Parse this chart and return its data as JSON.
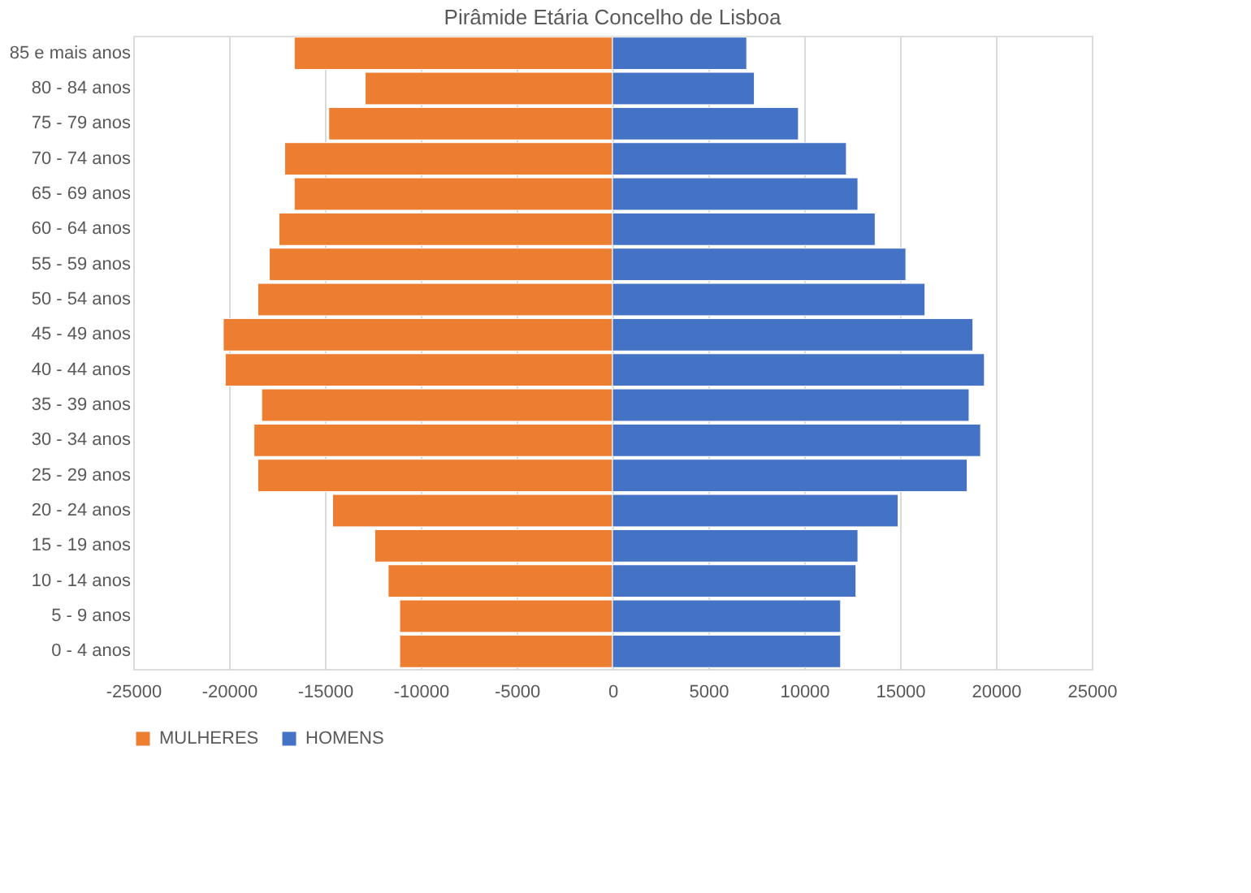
{
  "chart_data": {
    "type": "bar",
    "title": "Pirâmide Etária Concelho de Lisboa",
    "orientation": "horizontal",
    "stacked": true,
    "categories": [
      "85 e mais anos",
      "80 - 84 anos",
      "75 - 79 anos",
      "70 - 74 anos",
      "65 - 69 anos",
      "60 - 64 anos",
      "55 - 59 anos",
      "50 - 54 anos",
      "45 - 49 anos",
      "40 - 44 anos",
      "35 - 39 anos",
      "30 - 34 anos",
      "25 - 29 anos",
      "20 - 24 anos",
      "15 - 19 anos",
      "10 - 14 anos",
      "5 - 9 anos",
      "0 - 4 anos"
    ],
    "series": [
      {
        "name": "MULHERES",
        "color": "#ed7d31",
        "values": [
          -16600,
          -12900,
          -14800,
          -17100,
          -16600,
          -17400,
          -17900,
          -18500,
          -20300,
          -20200,
          -18300,
          -18700,
          -18500,
          -14600,
          -12400,
          -11700,
          -11100,
          -11100
        ]
      },
      {
        "name": "HOMENS",
        "color": "#4472c4",
        "values": [
          7000,
          7400,
          9700,
          12200,
          12800,
          13700,
          15300,
          16300,
          18800,
          19400,
          18600,
          19200,
          18500,
          14900,
          12800,
          12700,
          11900,
          11900
        ]
      }
    ],
    "xlim": [
      -25000,
      25000
    ],
    "xticks": [
      -25000,
      -20000,
      -15000,
      -10000,
      -5000,
      0,
      5000,
      10000,
      15000,
      20000,
      25000
    ],
    "grid": "x",
    "legend": "bottom"
  }
}
